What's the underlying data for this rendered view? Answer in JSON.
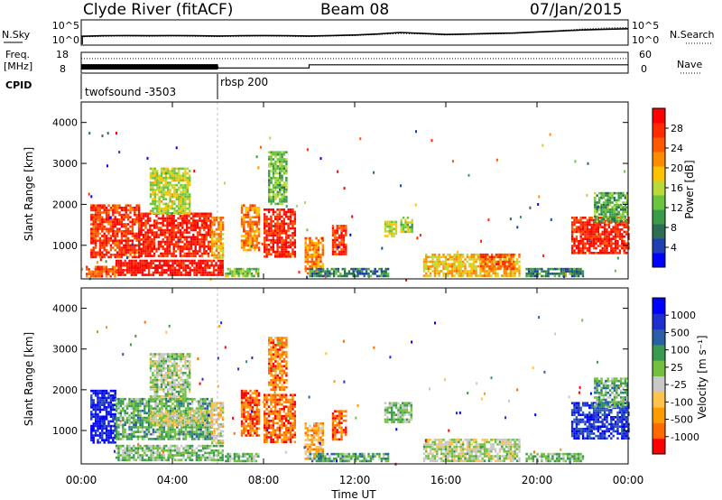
{
  "header": {
    "title": "Clyde River (fitACF)",
    "beam": "Beam 08",
    "date": "07/Jan/2015"
  },
  "panel_labels": {
    "nsky": "N.Sky",
    "nsky_top": "10^5",
    "nsky_bottom": "10^0",
    "nsearch": "N.Search",
    "nsearch_top": "10^5",
    "nsearch_bottom": "10^0",
    "freq": "Freq.",
    "freq_unit": "[MHz]",
    "freq_top": "18",
    "freq_bottom": "8",
    "nave": "Nave",
    "nave_top": "60",
    "nave_bottom": "0",
    "cpid": "CPID",
    "cpid1": "twofsound -3503",
    "cpid2": "rbsp 200"
  },
  "colors": {
    "power": [
      "#0000ff",
      "#1f3fb3",
      "#2d6e52",
      "#3c9b49",
      "#69c43e",
      "#b9d93a",
      "#ffc200",
      "#ff8c00",
      "#ff5a00",
      "#ff2a00",
      "#ff0000"
    ],
    "velocity": [
      "#ff0000",
      "#ff6a00",
      "#ff9a00",
      "#ffc24a",
      "#c8c8c8",
      "#72c040",
      "#3a9a50",
      "#2a5fa8",
      "#1e2fd0",
      "#0000ff"
    ]
  },
  "chart_data": [
    {
      "type": "line",
      "title": "N.Sky / N.Search",
      "xlabel": "Time UT",
      "xlim": [
        "00:00",
        "24:00"
      ],
      "series": [
        {
          "name": "N.Sky",
          "style": "solid",
          "x": [
            0,
            1,
            2,
            3,
            4,
            5,
            6,
            7,
            8,
            9,
            10,
            11,
            12,
            13,
            14,
            15,
            16,
            17,
            18,
            19,
            20,
            21,
            22,
            23,
            24
          ],
          "values": [
            0.35,
            0.37,
            0.38,
            0.37,
            0.38,
            0.37,
            0.36,
            0.37,
            0.38,
            0.37,
            0.36,
            0.38,
            0.4,
            0.44,
            0.5,
            0.46,
            0.42,
            0.44,
            0.46,
            0.48,
            0.52,
            0.56,
            0.6,
            0.63,
            0.65
          ]
        },
        {
          "name": "N.Search",
          "style": "dotted",
          "x": [
            0,
            1,
            2,
            3,
            4,
            5,
            6,
            7,
            8,
            9,
            10,
            11,
            12,
            13,
            14,
            15,
            16,
            17,
            18,
            19,
            20,
            21,
            22,
            23,
            24
          ],
          "values": [
            0.33,
            0.35,
            0.36,
            0.35,
            0.36,
            0.35,
            0.34,
            0.35,
            0.36,
            0.35,
            0.34,
            0.36,
            0.38,
            0.42,
            0.46,
            0.44,
            0.4,
            0.42,
            0.44,
            0.46,
            0.52,
            0.58,
            0.64,
            0.68,
            0.7
          ]
        }
      ]
    },
    {
      "type": "line",
      "title": "Freq / Nave",
      "ylim_left": [
        8,
        18
      ],
      "ylim_right": [
        0,
        60
      ],
      "series": [
        {
          "name": "Freq",
          "style": "solid",
          "x": [
            0,
            6,
            6,
            10,
            10,
            24
          ],
          "values": [
            11,
            11,
            10.5,
            10.5,
            12,
            12
          ]
        },
        {
          "name": "Nave",
          "style": "dotted",
          "x": [
            0,
            24
          ],
          "values": [
            42,
            42
          ]
        }
      ]
    },
    {
      "type": "heatmap",
      "title": "Power",
      "ylabel": "Slant Range [km]",
      "xlim": [
        0,
        24
      ],
      "ylim": [
        180,
        4500
      ],
      "yticks": [
        "1000",
        "2000",
        "3000",
        "4000"
      ],
      "colorbar_label": "Power [dB]",
      "colorbar_ticks": [
        "4",
        "8",
        "12",
        "16",
        "20",
        "24",
        "28"
      ],
      "regions": [
        {
          "t0": 0.4,
          "t1": 2.5,
          "r0": 700,
          "r1": 2000,
          "level": 0.85
        },
        {
          "t0": 2.5,
          "t1": 5.7,
          "r0": 750,
          "r1": 1800,
          "level": 0.92
        },
        {
          "t0": 5.7,
          "t1": 6.2,
          "r0": 700,
          "r1": 1700,
          "level": 0.65
        },
        {
          "t0": 1.5,
          "t1": 6.2,
          "r0": 250,
          "r1": 650,
          "level": 0.95
        },
        {
          "t0": 0.2,
          "t1": 1.5,
          "r0": 250,
          "r1": 500,
          "level": 0.8
        },
        {
          "t0": 3.0,
          "t1": 4.8,
          "r0": 1800,
          "r1": 2900,
          "level": 0.5
        },
        {
          "t0": 6.3,
          "t1": 7.8,
          "r0": 250,
          "r1": 450,
          "level": 0.45
        },
        {
          "t0": 7.0,
          "t1": 7.8,
          "r0": 900,
          "r1": 2000,
          "level": 0.7
        },
        {
          "t0": 8.0,
          "t1": 9.4,
          "r0": 700,
          "r1": 1900,
          "level": 0.9
        },
        {
          "t0": 8.2,
          "t1": 9.0,
          "r0": 2000,
          "r1": 3300,
          "level": 0.4
        },
        {
          "t0": 9.8,
          "t1": 10.6,
          "r0": 300,
          "r1": 1200,
          "level": 0.7
        },
        {
          "t0": 10.0,
          "t1": 13.5,
          "r0": 250,
          "r1": 450,
          "level": 0.25
        },
        {
          "t0": 11.0,
          "t1": 11.6,
          "r0": 800,
          "r1": 1500,
          "level": 0.85
        },
        {
          "t0": 13.3,
          "t1": 13.8,
          "r0": 1200,
          "r1": 1600,
          "level": 0.5
        },
        {
          "t0": 14.0,
          "t1": 14.5,
          "r0": 1300,
          "r1": 1700,
          "level": 0.45
        },
        {
          "t0": 15.0,
          "t1": 19.2,
          "r0": 250,
          "r1": 800,
          "level": 0.6
        },
        {
          "t0": 17.5,
          "t1": 19.0,
          "r0": 400,
          "r1": 800,
          "level": 0.8
        },
        {
          "t0": 19.5,
          "t1": 22.0,
          "r0": 250,
          "r1": 450,
          "level": 0.25
        },
        {
          "t0": 21.5,
          "t1": 24.0,
          "r0": 800,
          "r1": 1700,
          "level": 0.9
        },
        {
          "t0": 22.5,
          "t1": 24.0,
          "r0": 1600,
          "r1": 2300,
          "level": 0.35
        }
      ]
    },
    {
      "type": "heatmap",
      "title": "Velocity",
      "ylabel": "Slant Range [km]",
      "xlabel": "Time UT",
      "xlim": [
        0,
        24
      ],
      "ylim": [
        180,
        4500
      ],
      "yticks": [
        "1000",
        "2000",
        "3000",
        "4000"
      ],
      "xticks": [
        "00:00",
        "04:00",
        "08:00",
        "12:00",
        "16:00",
        "20:00",
        "00:00"
      ],
      "colorbar_label": "Velocity [m s⁻¹]",
      "colorbar_ticks": [
        "-1000",
        "-500",
        "-100",
        "-25",
        "25",
        "100",
        "500",
        "1000"
      ],
      "regions": [
        {
          "t0": 0.4,
          "t1": 1.5,
          "r0": 700,
          "r1": 2000,
          "level": 0.92
        },
        {
          "t0": 1.5,
          "t1": 5.7,
          "r0": 800,
          "r1": 1800,
          "level": 0.6
        },
        {
          "t0": 3.0,
          "t1": 5.7,
          "r0": 1100,
          "r1": 1500,
          "level": 0.45
        },
        {
          "t0": 1.5,
          "t1": 6.2,
          "r0": 250,
          "r1": 650,
          "level": 0.55
        },
        {
          "t0": 5.7,
          "t1": 6.2,
          "r0": 700,
          "r1": 1700,
          "level": 0.4
        },
        {
          "t0": 3.0,
          "t1": 4.8,
          "r0": 1800,
          "r1": 2900,
          "level": 0.5
        },
        {
          "t0": 6.3,
          "t1": 7.8,
          "r0": 250,
          "r1": 450,
          "level": 0.55
        },
        {
          "t0": 7.0,
          "t1": 7.8,
          "r0": 900,
          "r1": 2000,
          "level": 0.15
        },
        {
          "t0": 8.0,
          "t1": 9.4,
          "r0": 700,
          "r1": 1900,
          "level": 0.15
        },
        {
          "t0": 8.2,
          "t1": 9.0,
          "r0": 2000,
          "r1": 3300,
          "level": 0.2
        },
        {
          "t0": 9.8,
          "t1": 10.6,
          "r0": 300,
          "r1": 1200,
          "level": 0.3
        },
        {
          "t0": 10.0,
          "t1": 13.5,
          "r0": 250,
          "r1": 450,
          "level": 0.6
        },
        {
          "t0": 11.0,
          "t1": 11.6,
          "r0": 800,
          "r1": 1500,
          "level": 0.15
        },
        {
          "t0": 13.3,
          "t1": 14.5,
          "r0": 1200,
          "r1": 1700,
          "level": 0.55
        },
        {
          "t0": 15.0,
          "t1": 19.2,
          "r0": 250,
          "r1": 800,
          "level": 0.48
        },
        {
          "t0": 19.5,
          "t1": 22.0,
          "r0": 250,
          "r1": 450,
          "level": 0.55
        },
        {
          "t0": 21.5,
          "t1": 24.0,
          "r0": 800,
          "r1": 1700,
          "level": 0.85
        },
        {
          "t0": 22.5,
          "t1": 24.0,
          "r0": 1600,
          "r1": 2300,
          "level": 0.6
        }
      ]
    }
  ]
}
